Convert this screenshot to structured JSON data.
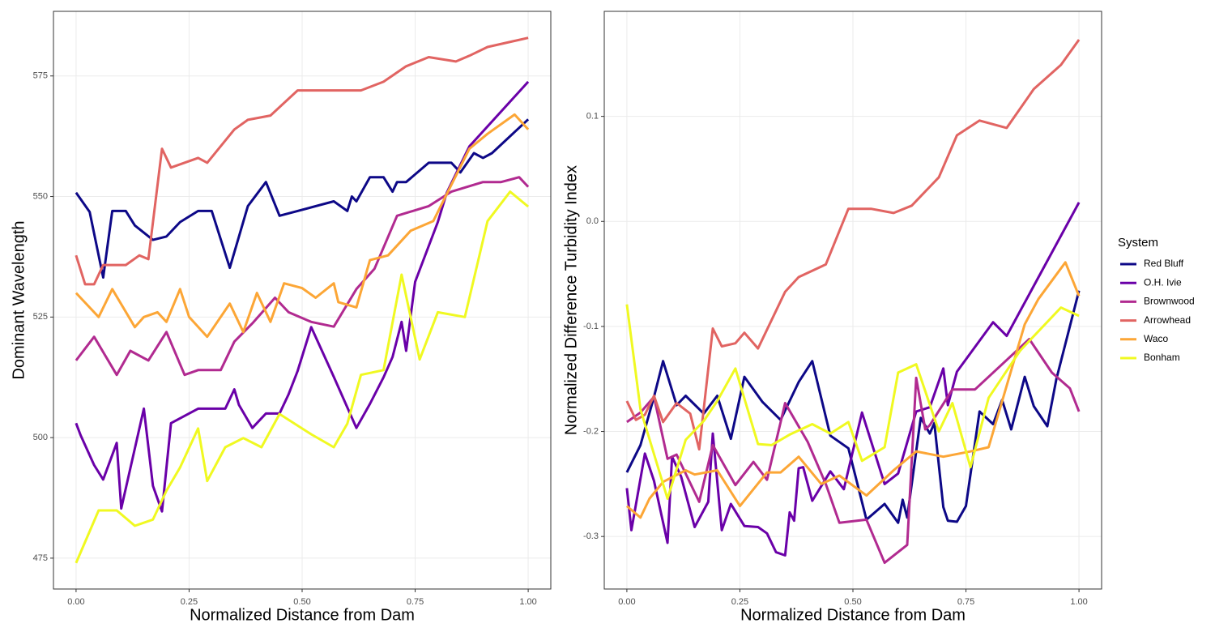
{
  "chart_data": [
    {
      "type": "line",
      "x_label": "Normalized Distance from Dam",
      "y_label": "Dominant Wavelength",
      "xlim": [
        -0.05,
        1.05
      ],
      "ylim": [
        468.6,
        588.4
      ],
      "xticks": [
        {
          "value": 0,
          "label": "0.00"
        },
        {
          "value": 0.25,
          "label": "0.25"
        },
        {
          "value": 0.5,
          "label": "0.50"
        },
        {
          "value": 0.75,
          "label": "0.75"
        },
        {
          "value": 1,
          "label": "1.00"
        }
      ],
      "yticks": [
        475,
        500,
        525,
        550,
        575
      ],
      "grid": true,
      "series": [
        {
          "name": "Red Bluff",
          "color": "#0d0887",
          "x": [
            0,
            0.03,
            0.06,
            0.08,
            0.11,
            0.13,
            0.17,
            0.2,
            0.23,
            0.27,
            0.3,
            0.34,
            0.38,
            0.42,
            0.45,
            0.49,
            0.57,
            0.6,
            0.61,
            0.62,
            0.65,
            0.68,
            0.7,
            0.71,
            0.73,
            0.78,
            0.83,
            0.85,
            0.88,
            0.9,
            0.92,
            1
          ],
          "values": [
            550.8,
            546.8,
            533.2,
            547,
            547,
            544,
            541,
            541.7,
            544.7,
            547,
            547,
            535.2,
            548,
            553,
            546,
            547,
            549,
            547,
            550,
            549,
            554,
            554,
            551,
            553,
            553,
            557,
            557,
            555,
            559,
            558,
            559,
            566
          ]
        },
        {
          "name": "O.H. Ivie",
          "color": "#6a00a8",
          "x": [
            0,
            0.01,
            0.04,
            0.06,
            0.09,
            0.1,
            0.15,
            0.17,
            0.19,
            0.21,
            0.23,
            0.27,
            0.33,
            0.35,
            0.36,
            0.39,
            0.42,
            0.45,
            0.47,
            0.49,
            0.52,
            0.57,
            0.62,
            0.65,
            0.68,
            0.7,
            0.72,
            0.73,
            0.75,
            0.8,
            0.82,
            0.87,
            1
          ],
          "values": [
            503,
            500.5,
            494.3,
            491.3,
            498.9,
            485.3,
            506,
            490,
            484.7,
            503,
            504,
            506,
            506,
            510,
            506.8,
            502,
            505,
            505,
            509,
            513.8,
            522.9,
            512.6,
            502,
            507,
            512.5,
            516.7,
            524,
            518,
            532.3,
            544.7,
            550.8,
            560.4,
            573.8
          ]
        },
        {
          "name": "Brownwood",
          "color": "#b12a90",
          "x": [
            0,
            0.04,
            0.09,
            0.12,
            0.16,
            0.2,
            0.24,
            0.27,
            0.32,
            0.35,
            0.39,
            0.44,
            0.47,
            0.52,
            0.57,
            0.62,
            0.66,
            0.71,
            0.78,
            0.83,
            0.9,
            0.94,
            0.98,
            1
          ],
          "values": [
            516,
            520.9,
            513,
            518,
            516,
            521.9,
            513,
            514,
            514,
            519.9,
            523.7,
            529,
            526,
            524,
            523,
            530.8,
            535,
            546,
            548,
            551,
            553,
            553,
            554,
            552
          ]
        },
        {
          "name": "Arrowhead",
          "color": "#e16462",
          "x": [
            0,
            0.02,
            0.04,
            0.06,
            0.11,
            0.14,
            0.16,
            0.19,
            0.21,
            0.27,
            0.29,
            0.35,
            0.38,
            0.43,
            0.49,
            0.63,
            0.68,
            0.73,
            0.78,
            0.84,
            0.87,
            0.91,
            1
          ],
          "values": [
            537.8,
            531.8,
            531.8,
            535.8,
            535.8,
            537.8,
            537,
            559.9,
            556,
            558,
            557,
            563.9,
            565.9,
            566.8,
            572,
            572,
            573.8,
            577,
            578.9,
            578,
            579.2,
            581,
            582.9
          ]
        },
        {
          "name": "Waco",
          "color": "#fca636",
          "x": [
            0,
            0.05,
            0.08,
            0.13,
            0.15,
            0.18,
            0.2,
            0.23,
            0.25,
            0.29,
            0.34,
            0.37,
            0.4,
            0.43,
            0.46,
            0.5,
            0.53,
            0.57,
            0.58,
            0.62,
            0.65,
            0.69,
            0.74,
            0.79,
            0.87,
            0.91,
            0.97,
            1
          ],
          "values": [
            530,
            525,
            530.8,
            522.9,
            525,
            526,
            524,
            530.8,
            525,
            520.9,
            527.8,
            521.9,
            530,
            524,
            532,
            531,
            529,
            532,
            528.1,
            527,
            536.8,
            537.8,
            542.9,
            544.9,
            559.9,
            563,
            567,
            563.9
          ]
        },
        {
          "name": "Bonham",
          "color": "#f0f921",
          "x": [
            0,
            0.05,
            0.09,
            0.13,
            0.17,
            0.2,
            0.23,
            0.27,
            0.29,
            0.33,
            0.37,
            0.41,
            0.45,
            0.52,
            0.57,
            0.6,
            0.63,
            0.68,
            0.72,
            0.76,
            0.8,
            0.86,
            0.91,
            0.96,
            1
          ],
          "values": [
            474,
            484.9,
            484.9,
            481.7,
            483,
            489,
            493.8,
            501.9,
            491,
            498,
            499.9,
            498,
            504.9,
            500.7,
            498,
            502.9,
            513,
            514,
            533.8,
            516.2,
            526,
            525,
            544.9,
            551,
            547.9
          ]
        }
      ]
    },
    {
      "type": "line",
      "x_label": "Normalized Distance from Dam",
      "y_label": "Normalized Difference Turbidity Index",
      "xlim": [
        -0.05,
        1.05
      ],
      "ylim": [
        -0.35,
        0.2
      ],
      "xticks": [
        {
          "value": 0,
          "label": "0.00"
        },
        {
          "value": 0.25,
          "label": "0.25"
        },
        {
          "value": 0.5,
          "label": "0.50"
        },
        {
          "value": 0.75,
          "label": "0.75"
        },
        {
          "value": 1,
          "label": "1.00"
        }
      ],
      "yticks": [
        -0.3,
        -0.2,
        -0.1,
        {
          "value": 0,
          "label": "0.0"
        },
        0.1
      ],
      "grid": true,
      "legend": {
        "title": "System",
        "position": "right"
      },
      "series": [
        {
          "name": "Red Bluff",
          "color": "#0d0887",
          "x": [
            0,
            0.03,
            0.06,
            0.08,
            0.11,
            0.13,
            0.17,
            0.2,
            0.23,
            0.26,
            0.3,
            0.34,
            0.38,
            0.41,
            0.45,
            0.49,
            0.53,
            0.57,
            0.6,
            0.61,
            0.62,
            0.65,
            0.67,
            0.68,
            0.7,
            0.71,
            0.73,
            0.75,
            0.78,
            0.81,
            0.83,
            0.85,
            0.88,
            0.9,
            0.93,
            0.95,
            1
          ],
          "values": [
            -0.239,
            -0.213,
            -0.167,
            -0.133,
            -0.175,
            -0.166,
            -0.183,
            -0.166,
            -0.207,
            -0.148,
            -0.172,
            -0.189,
            -0.153,
            -0.133,
            -0.204,
            -0.216,
            -0.284,
            -0.269,
            -0.287,
            -0.265,
            -0.282,
            -0.187,
            -0.202,
            -0.192,
            -0.272,
            -0.285,
            -0.286,
            -0.271,
            -0.181,
            -0.193,
            -0.17,
            -0.198,
            -0.148,
            -0.176,
            -0.195,
            -0.15,
            -0.066
          ]
        },
        {
          "name": "O.H. Ivie",
          "color": "#6a00a8",
          "x": [
            0,
            0.01,
            0.04,
            0.06,
            0.09,
            0.1,
            0.12,
            0.15,
            0.18,
            0.19,
            0.21,
            0.23,
            0.26,
            0.29,
            0.31,
            0.33,
            0.35,
            0.36,
            0.37,
            0.38,
            0.39,
            0.41,
            0.45,
            0.48,
            0.52,
            0.57,
            0.6,
            0.64,
            0.67,
            0.7,
            0.71,
            0.73,
            0.81,
            0.84,
            1
          ],
          "values": [
            -0.254,
            -0.294,
            -0.221,
            -0.247,
            -0.306,
            -0.224,
            -0.243,
            -0.291,
            -0.267,
            -0.202,
            -0.294,
            -0.269,
            -0.29,
            -0.291,
            -0.297,
            -0.315,
            -0.318,
            -0.277,
            -0.285,
            -0.235,
            -0.234,
            -0.266,
            -0.238,
            -0.255,
            -0.182,
            -0.25,
            -0.24,
            -0.181,
            -0.177,
            -0.14,
            -0.175,
            -0.143,
            -0.096,
            -0.109,
            0.018
          ]
        },
        {
          "name": "Brownwood",
          "color": "#b12a90",
          "x": [
            0,
            0.03,
            0.06,
            0.09,
            0.11,
            0.16,
            0.19,
            0.24,
            0.28,
            0.31,
            0.35,
            0.4,
            0.44,
            0.47,
            0.53,
            0.57,
            0.62,
            0.64,
            0.66,
            0.67,
            0.72,
            0.77,
            0.89,
            0.94,
            0.98,
            1
          ],
          "values": [
            -0.191,
            -0.182,
            -0.167,
            -0.226,
            -0.222,
            -0.267,
            -0.213,
            -0.251,
            -0.229,
            -0.246,
            -0.173,
            -0.21,
            -0.25,
            -0.287,
            -0.284,
            -0.325,
            -0.308,
            -0.149,
            -0.198,
            -0.194,
            -0.16,
            -0.16,
            -0.112,
            -0.144,
            -0.159,
            -0.181
          ]
        },
        {
          "name": "Arrowhead",
          "color": "#e16462",
          "x": [
            0,
            0.02,
            0.04,
            0.06,
            0.08,
            0.11,
            0.14,
            0.16,
            0.19,
            0.21,
            0.24,
            0.26,
            0.29,
            0.35,
            0.38,
            0.44,
            0.49,
            0.54,
            0.59,
            0.63,
            0.69,
            0.73,
            0.78,
            0.84,
            0.9,
            0.96,
            1
          ],
          "values": [
            -0.171,
            -0.189,
            -0.184,
            -0.166,
            -0.191,
            -0.173,
            -0.183,
            -0.217,
            -0.102,
            -0.119,
            -0.116,
            -0.106,
            -0.121,
            -0.067,
            -0.053,
            -0.041,
            0.012,
            0.012,
            0.008,
            0.015,
            0.042,
            0.082,
            0.096,
            0.089,
            0.126,
            0.149,
            0.173
          ]
        },
        {
          "name": "Waco",
          "color": "#fca636",
          "x": [
            0,
            0.03,
            0.05,
            0.08,
            0.13,
            0.15,
            0.2,
            0.25,
            0.31,
            0.34,
            0.38,
            0.43,
            0.47,
            0.53,
            0.59,
            0.64,
            0.7,
            0.76,
            0.8,
            0.88,
            0.91,
            0.97,
            1
          ],
          "values": [
            -0.271,
            -0.282,
            -0.264,
            -0.248,
            -0.237,
            -0.241,
            -0.237,
            -0.271,
            -0.239,
            -0.239,
            -0.224,
            -0.25,
            -0.242,
            -0.261,
            -0.237,
            -0.219,
            -0.224,
            -0.219,
            -0.215,
            -0.098,
            -0.074,
            -0.039,
            -0.071
          ]
        },
        {
          "name": "Bonham",
          "color": "#f0f921",
          "x": [
            0,
            0.03,
            0.09,
            0.13,
            0.17,
            0.2,
            0.24,
            0.29,
            0.32,
            0.36,
            0.41,
            0.45,
            0.49,
            0.52,
            0.57,
            0.6,
            0.64,
            0.69,
            0.72,
            0.76,
            0.8,
            0.87,
            0.96,
            1
          ],
          "values": [
            -0.079,
            -0.179,
            -0.264,
            -0.208,
            -0.19,
            -0.171,
            -0.14,
            -0.212,
            -0.213,
            -0.203,
            -0.193,
            -0.202,
            -0.191,
            -0.228,
            -0.215,
            -0.144,
            -0.136,
            -0.2,
            -0.173,
            -0.234,
            -0.168,
            -0.123,
            -0.082,
            -0.09
          ]
        }
      ]
    }
  ]
}
